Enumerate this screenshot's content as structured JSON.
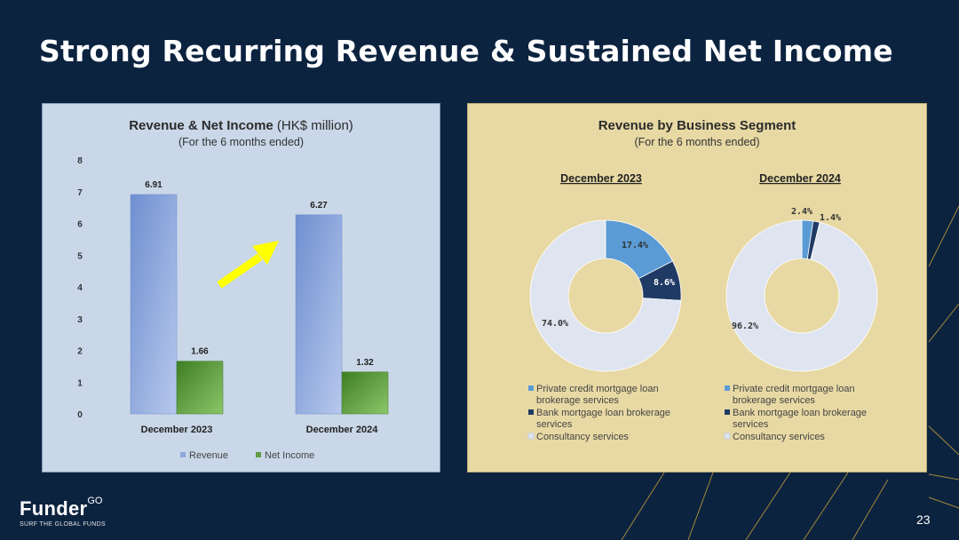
{
  "slide": {
    "title": "Strong Recurring Revenue & Sustained Net Income",
    "page_number": "23"
  },
  "logo": {
    "name": "Funder",
    "name_sup": "GO",
    "tagline": "SURF THE GLOBAL FUNDS"
  },
  "left_panel": {
    "title_bold": "Revenue & Net Income",
    "title_normal": " (HK$ million)",
    "subtitle": "(For the 6 months ended)"
  },
  "right_panel": {
    "title": "Revenue by Business Segment",
    "subtitle": "(For the 6 months ended)"
  },
  "colors": {
    "background": "#0c2340",
    "left_panel_bg": "#c9d7e8",
    "right_panel_bg": "#e8d9a4",
    "revenue": "#8ea6dc",
    "net_income": "#5e9c3e",
    "private_credit": "#5b9bd5",
    "bank_mortgage": "#1f3a64",
    "consultancy": "#dfe4f1",
    "arrow": "#ffff00"
  },
  "chart_data": [
    {
      "type": "bar",
      "categories": [
        "December 2023",
        "December 2024"
      ],
      "series": [
        {
          "name": "Revenue",
          "values": [
            6.91,
            6.27
          ]
        },
        {
          "name": "Net Income",
          "values": [
            1.66,
            1.32
          ]
        }
      ],
      "ylim": [
        0,
        8
      ],
      "yticks": [
        "0",
        "1",
        "2",
        "3",
        "4",
        "5",
        "6",
        "7",
        "8"
      ],
      "value_labels": [
        [
          "6.91",
          "6.27"
        ],
        [
          "1.66",
          "1.32"
        ]
      ],
      "legend": [
        "Revenue",
        "Net Income"
      ],
      "legend_position": "bottom",
      "grid": false,
      "annotation": "yellow upward arrow between the two dates"
    },
    {
      "type": "pie",
      "donut": true,
      "title": "December 2023",
      "labels": [
        "Private credit mortgage loan brokerage services",
        "Bank mortgage loan brokerage services",
        "Consultancy services"
      ],
      "values": [
        17.4,
        8.6,
        74.0
      ],
      "value_labels": [
        "17.4%",
        "8.6%",
        "74.0%"
      ],
      "legend_position": "bottom"
    },
    {
      "type": "pie",
      "donut": true,
      "title": "December 2024",
      "labels": [
        "Private credit mortgage loan brokerage services",
        "Bank mortgage loan brokerage services",
        "Consultancy services"
      ],
      "values": [
        2.4,
        1.4,
        96.2
      ],
      "value_labels": [
        "2.4%",
        "1.4%",
        "96.2%"
      ],
      "legend_position": "bottom"
    }
  ]
}
